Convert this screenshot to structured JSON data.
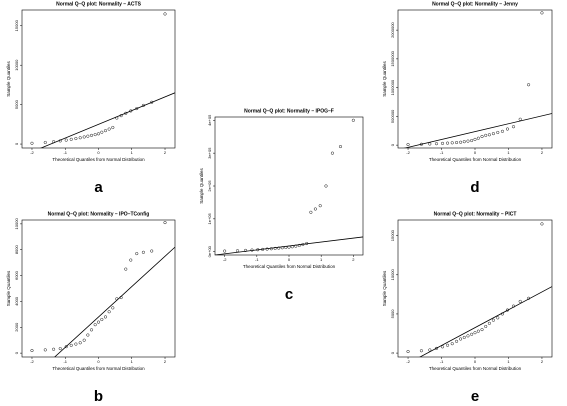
{
  "chart_data": [
    {
      "type": "scatter",
      "title": "Normal Q–Q plot: Normality – ACTS",
      "panel_label": "a",
      "x_label": "Theoretical Quantiles from Normal Distribution",
      "y_label": "Sample Quantiles",
      "x": [
        -2.0,
        -1.6,
        -1.35,
        -1.15,
        -0.97,
        -0.82,
        -0.68,
        -0.55,
        -0.43,
        -0.32,
        -0.21,
        -0.1,
        0,
        0.1,
        0.21,
        0.32,
        0.43,
        0.55,
        0.68,
        0.82,
        0.97,
        1.15,
        1.35,
        1.6,
        2.0
      ],
      "y": [
        100,
        200,
        300,
        400,
        500,
        600,
        700,
        800,
        900,
        1000,
        1100,
        1200,
        1300,
        1500,
        1700,
        1900,
        2100,
        3300,
        3600,
        3900,
        4200,
        4500,
        4900,
        5300,
        16500
      ],
      "reference_line": {
        "x": [
          -2.3,
          2.3
        ],
        "y": [
          -1500,
          6500
        ]
      },
      "xlim": [
        -2.3,
        2.3
      ],
      "xticks": [
        -2,
        -1,
        0,
        1,
        2
      ],
      "ylim": [
        -500,
        17000
      ],
      "yticks": [
        0,
        5000,
        10000,
        15000
      ]
    },
    {
      "type": "scatter",
      "title": "Normal Q–Q plot: Normality – IPO–TConfig",
      "panel_label": "b",
      "x_label": "Theoretical Quantiles from Normal Distribution",
      "y_label": "Sample Quantiles",
      "x": [
        -2.0,
        -1.6,
        -1.35,
        -1.15,
        -0.97,
        -0.82,
        -0.68,
        -0.55,
        -0.43,
        -0.32,
        -0.21,
        -0.1,
        0,
        0.1,
        0.21,
        0.32,
        0.43,
        0.55,
        0.68,
        0.82,
        0.97,
        1.15,
        1.35,
        1.6,
        2.0
      ],
      "y": [
        200,
        250,
        300,
        350,
        500,
        600,
        700,
        800,
        1000,
        1400,
        1800,
        2200,
        2400,
        2600,
        2800,
        3200,
        3500,
        4200,
        4300,
        6500,
        7200,
        7700,
        7800,
        7900,
        10100
      ],
      "reference_line": {
        "x": [
          -1.7,
          2.3
        ],
        "y": [
          -1200,
          8200
        ]
      },
      "xlim": [
        -2.3,
        2.3
      ],
      "xticks": [
        -2,
        -1,
        0,
        1,
        2
      ],
      "ylim": [
        -300,
        10300
      ],
      "yticks": [
        0,
        2000,
        4000,
        6000,
        8000,
        10000
      ]
    },
    {
      "type": "scatter",
      "title": "Normal Q–Q plot: Normality – IPOG–F",
      "panel_label": "c",
      "x_label": "Theoretical Quantiles from Normal Distribution",
      "y_label": "Sample Quantiles",
      "x": [
        -2.0,
        -1.6,
        -1.35,
        -1.15,
        -0.97,
        -0.82,
        -0.68,
        -0.55,
        -0.43,
        -0.32,
        -0.21,
        -0.1,
        0,
        0.1,
        0.21,
        0.32,
        0.43,
        0.55,
        0.68,
        0.82,
        0.97,
        1.15,
        1.35,
        1.6,
        2.0
      ],
      "y": [
        2000,
        3000,
        4000,
        5000,
        6000,
        7000,
        8000,
        9000,
        10000,
        11000,
        12000,
        13000,
        14000,
        15000,
        17000,
        19000,
        22000,
        25000,
        120000,
        130000,
        140000,
        200000,
        300000,
        320000,
        400000
      ],
      "reference_line": {
        "x": [
          -2.3,
          2.3
        ],
        "y": [
          -10000,
          45000
        ]
      },
      "xlim": [
        -2.3,
        2.3
      ],
      "xticks": [
        -2,
        -1,
        0,
        1,
        2
      ],
      "ylim": [
        -10000,
        410000
      ],
      "yticks": [
        {
          "value": 0,
          "label": "0e+00"
        },
        {
          "value": 100000,
          "label": "1e+05"
        },
        {
          "value": 200000,
          "label": "2e+05"
        },
        {
          "value": 300000,
          "label": "3e+05"
        },
        {
          "value": 400000,
          "label": "4e+05"
        }
      ]
    },
    {
      "type": "scatter",
      "title": "Normal Q–Q plot: Normality – Jenny",
      "panel_label": "d",
      "x_label": "Theoretical Quantiles from Normal Distribution",
      "y_label": "Sample Quantiles",
      "x": [
        -2.0,
        -1.6,
        -1.35,
        -1.15,
        -0.97,
        -0.82,
        -0.68,
        -0.55,
        -0.43,
        -0.32,
        -0.21,
        -0.1,
        0,
        0.1,
        0.21,
        0.32,
        0.43,
        0.55,
        0.68,
        0.82,
        0.97,
        1.15,
        1.35,
        1.6,
        2.0
      ],
      "y": [
        10000,
        15000,
        20000,
        25000,
        30000,
        35000,
        40000,
        45000,
        50000,
        60000,
        70000,
        80000,
        100000,
        120000,
        150000,
        170000,
        180000,
        200000,
        220000,
        240000,
        280000,
        320000,
        450000,
        1050000,
        2300000
      ],
      "reference_line": {
        "x": [
          -2.3,
          2.3
        ],
        "y": [
          -80000,
          550000
        ]
      },
      "xlim": [
        -2.3,
        2.3
      ],
      "xticks": [
        -2,
        -1,
        0,
        1,
        2
      ],
      "ylim": [
        -50000,
        2350000
      ],
      "yticks": [
        0,
        500000,
        1000000,
        1500000,
        2000000
      ]
    },
    {
      "type": "scatter",
      "title": "Normal Q–Q plot: Normality – PICT",
      "panel_label": "e",
      "x_label": "Theoretical Quantiles from Normal Distribution",
      "y_label": "Sample Quantiles",
      "x": [
        -2.0,
        -1.6,
        -1.35,
        -1.15,
        -0.97,
        -0.82,
        -0.68,
        -0.55,
        -0.43,
        -0.32,
        -0.21,
        -0.1,
        0,
        0.1,
        0.21,
        0.32,
        0.43,
        0.55,
        0.68,
        0.82,
        0.97,
        1.15,
        1.35,
        1.6,
        2.0
      ],
      "y": [
        200,
        300,
        400,
        600,
        800,
        1000,
        1200,
        1500,
        1800,
        2000,
        2200,
        2400,
        2600,
        2800,
        3000,
        3400,
        3800,
        4200,
        4500,
        5000,
        5500,
        6000,
        6600,
        7000,
        16500
      ],
      "reference_line": {
        "x": [
          -2.3,
          2.3
        ],
        "y": [
          -2000,
          8500
        ]
      },
      "xlim": [
        -2.3,
        2.3
      ],
      "xticks": [
        -2,
        -1,
        0,
        1,
        2
      ],
      "ylim": [
        -500,
        17000
      ],
      "yticks": [
        0,
        5000,
        10000,
        15000
      ]
    }
  ]
}
